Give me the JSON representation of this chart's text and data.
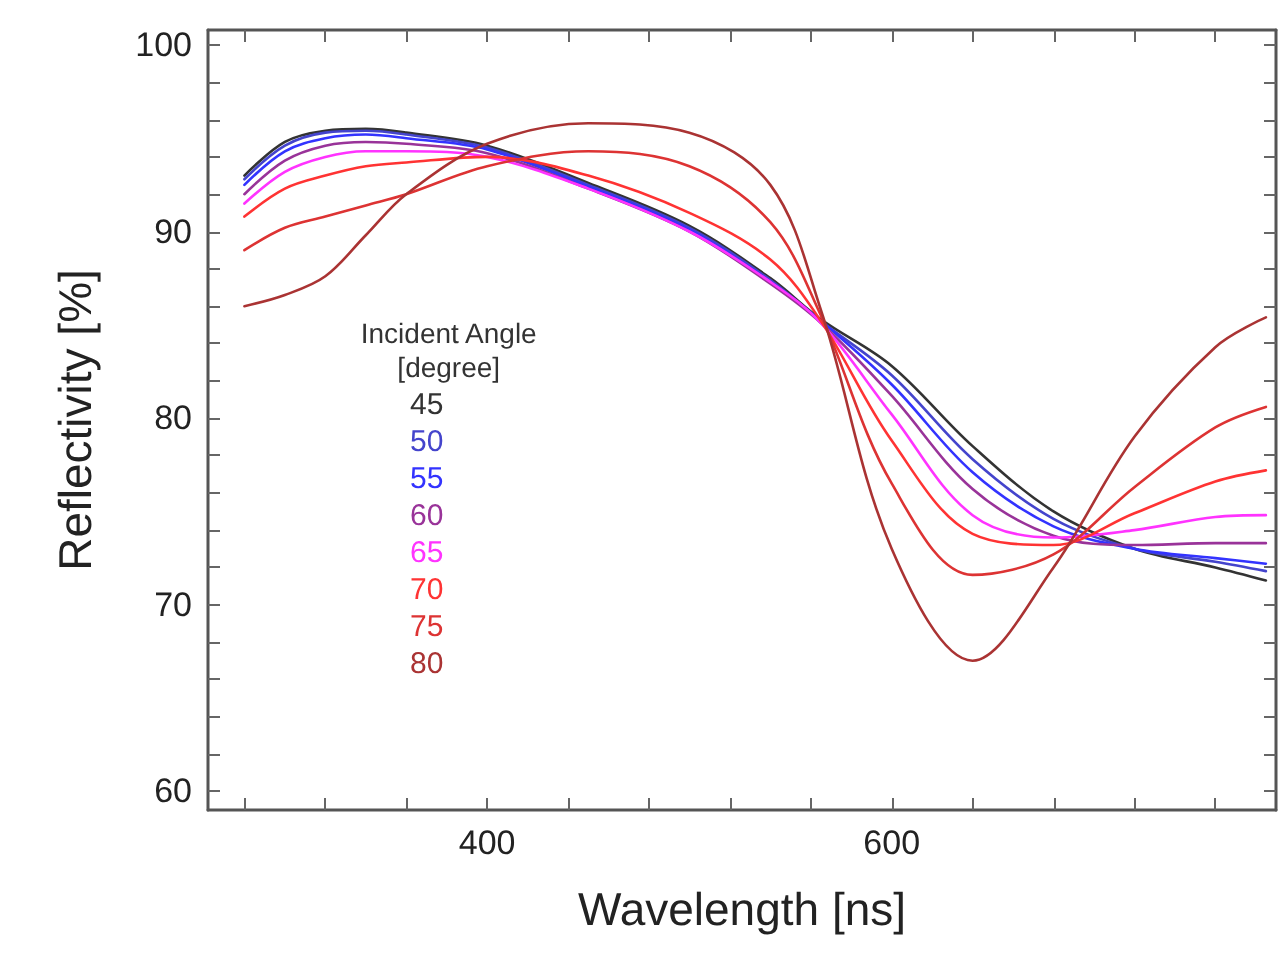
{
  "chart_data": {
    "type": "line",
    "xlabel": "Wavelength [ns]",
    "ylabel": "Reflectivity [%]",
    "legend_title": "Incident Angle\n[degree]",
    "x": [
      280,
      300,
      320,
      340,
      360,
      400,
      450,
      500,
      540,
      565,
      600,
      640,
      680,
      720,
      760,
      785
    ],
    "series": [
      {
        "name": "45",
        "color": "#333333",
        "values": [
          93.0,
          94.8,
          95.4,
          95.5,
          95.3,
          94.6,
          92.6,
          90.3,
          87.5,
          85.3,
          82.8,
          78.5,
          75.0,
          73.0,
          72.0,
          71.3
        ]
      },
      {
        "name": "50",
        "color": "#4444cc",
        "values": [
          92.8,
          94.6,
          95.3,
          95.4,
          95.2,
          94.5,
          92.5,
          90.2,
          87.4,
          85.2,
          82.3,
          77.8,
          74.6,
          73.0,
          72.3,
          71.8
        ]
      },
      {
        "name": "55",
        "color": "#3333ff",
        "values": [
          92.5,
          94.3,
          95.0,
          95.2,
          95.0,
          94.4,
          92.4,
          90.1,
          87.3,
          85.2,
          81.8,
          77.1,
          74.2,
          73.0,
          72.5,
          72.2
        ]
      },
      {
        "name": "60",
        "color": "#993399",
        "values": [
          92.0,
          93.8,
          94.6,
          94.8,
          94.7,
          94.2,
          92.3,
          90.0,
          87.2,
          85.1,
          81.2,
          76.2,
          73.7,
          73.2,
          73.3,
          73.3
        ]
      },
      {
        "name": "65",
        "color": "#ff33ff",
        "values": [
          91.5,
          93.2,
          94.0,
          94.3,
          94.3,
          94.0,
          92.3,
          90.0,
          87.3,
          85.1,
          80.2,
          74.8,
          73.6,
          74.0,
          74.7,
          74.8
        ]
      },
      {
        "name": "70",
        "color": "#ff3333",
        "values": [
          90.8,
          92.3,
          93.0,
          93.5,
          93.7,
          94.0,
          93.0,
          91.0,
          88.5,
          85.2,
          78.8,
          73.8,
          73.2,
          74.9,
          76.6,
          77.2
        ]
      },
      {
        "name": "75",
        "color": "#dd3333",
        "values": [
          89.0,
          90.2,
          90.8,
          91.4,
          92.0,
          93.5,
          94.3,
          93.5,
          90.5,
          85.5,
          76.5,
          71.6,
          72.7,
          76.3,
          79.5,
          80.6
        ]
      },
      {
        "name": "80",
        "color": "#aa3333",
        "values": [
          86.0,
          86.6,
          87.6,
          89.8,
          92.0,
          94.7,
          95.8,
          95.3,
          92.5,
          85.8,
          73.0,
          67.0,
          72.0,
          79.0,
          83.8,
          85.4
        ]
      }
    ],
    "xlim": [
      262,
      790
    ],
    "xticks": [
      {
        "value": 280,
        "label": null
      },
      {
        "value": 320,
        "label": null
      },
      {
        "value": 360,
        "label": null
      },
      400,
      {
        "value": 440,
        "label": null
      },
      {
        "value": 480,
        "label": null
      },
      {
        "value": 520,
        "label": null
      },
      {
        "value": 560,
        "label": null
      },
      600,
      {
        "value": 640,
        "label": null
      },
      {
        "value": 680,
        "label": null
      },
      {
        "value": 720,
        "label": null
      },
      {
        "value": 760,
        "label": null
      }
    ],
    "ylim": [
      59,
      100.8
    ],
    "yticks": [
      {
        "value": 60,
        "label": "60"
      },
      {
        "value": 62,
        "label": null
      },
      {
        "value": 64,
        "label": null
      },
      {
        "value": 66,
        "label": null
      },
      {
        "value": 68,
        "label": null
      },
      70,
      {
        "value": 72,
        "label": null
      },
      {
        "value": 74,
        "label": null
      },
      {
        "value": 76,
        "label": null
      },
      {
        "value": 78,
        "label": null
      },
      80,
      {
        "value": 82,
        "label": null
      },
      {
        "value": 84,
        "label": null
      },
      {
        "value": 86,
        "label": null
      },
      {
        "value": 88,
        "label": null
      },
      90,
      {
        "value": 92,
        "label": null
      },
      {
        "value": 94,
        "label": null
      },
      {
        "value": 96,
        "label": null
      },
      {
        "value": 98,
        "label": null
      },
      100
    ],
    "grid": false,
    "legend": "left",
    "marker": "none",
    "line_style": "solid"
  }
}
